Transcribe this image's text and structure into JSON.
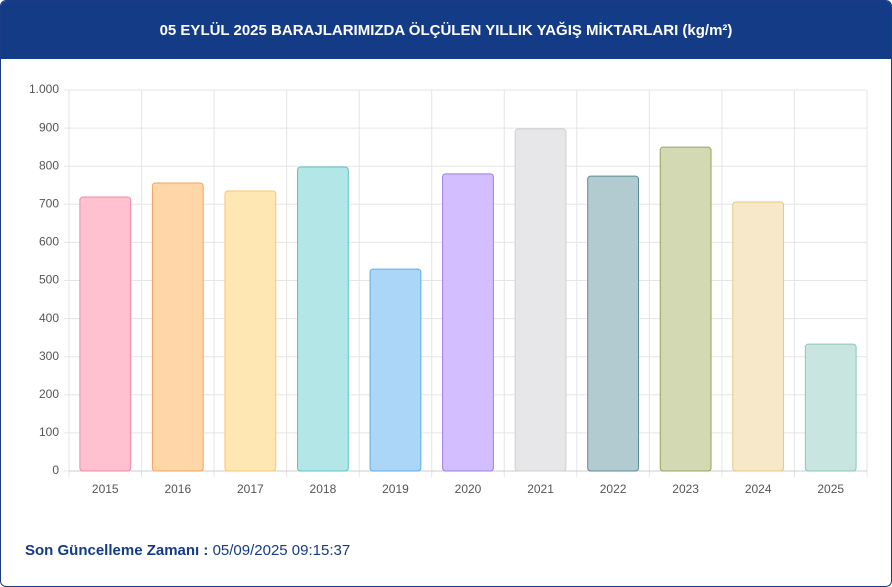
{
  "chart_data": {
    "type": "bar",
    "title": "05 EYLÜL 2025 BARAJLARIMIZDA ÖLÇÜLEN YILLIK YAĞIŞ MİKTARLARI (kg/m²)",
    "categories": [
      "2015",
      "2016",
      "2017",
      "2018",
      "2019",
      "2020",
      "2021",
      "2022",
      "2023",
      "2024",
      "2025"
    ],
    "values": [
      719,
      756,
      735,
      798,
      530,
      780,
      898,
      774,
      850,
      706,
      333
    ],
    "colors": [
      "#ffc0cf",
      "#fed6a8",
      "#ffe7b3",
      "#b3e6e6",
      "#acd6f7",
      "#d3bfff",
      "#e7e7e9",
      "#b1cbd0",
      "#d3d9b3",
      "#f6e8c8",
      "#c8e6df"
    ],
    "border_colors": [
      "#f08aa6",
      "#f5a35a",
      "#f5c86a",
      "#5cc4c4",
      "#5aaee8",
      "#a07be8",
      "#cfcfd1",
      "#5a8b93",
      "#9aa35c",
      "#e3c983",
      "#8ac7b8"
    ],
    "ylim": [
      0,
      1000
    ],
    "yticks": [
      0,
      100,
      200,
      300,
      400,
      500,
      600,
      700,
      800,
      900,
      {
        "value": 1000,
        "label": "1.000"
      }
    ],
    "grid": true
  },
  "footer": {
    "label": "Son Güncelleme Zamanı :",
    "timestamp": "05/09/2025 09:15:37"
  }
}
